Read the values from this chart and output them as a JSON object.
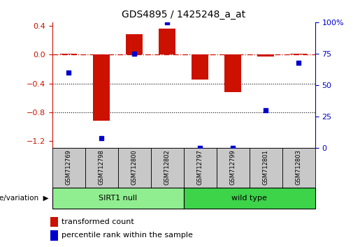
{
  "title": "GDS4895 / 1425248_a_at",
  "samples": [
    "GSM712769",
    "GSM712798",
    "GSM712800",
    "GSM712802",
    "GSM712797",
    "GSM712799",
    "GSM712801",
    "GSM712803"
  ],
  "transformed_count": [
    0.01,
    -0.92,
    0.28,
    0.36,
    -0.35,
    -0.52,
    -0.03,
    0.01
  ],
  "percentile_rank": [
    60,
    8,
    75,
    100,
    0,
    0,
    30,
    68
  ],
  "groups": [
    {
      "label": "SIRT1 null",
      "start": 0,
      "end": 4,
      "color": "#90EE90"
    },
    {
      "label": "wild type",
      "start": 4,
      "end": 8,
      "color": "#3DD44A"
    }
  ],
  "group_label": "genotype/variation",
  "bar_color": "#CC1100",
  "dot_color": "#0000CC",
  "ylim_left": [
    -1.3,
    0.45
  ],
  "ylim_right": [
    0,
    100
  ],
  "yticks_left": [
    -1.2,
    -0.8,
    -0.4,
    0.0,
    0.4
  ],
  "yticks_right": [
    0,
    25,
    50,
    75,
    100
  ],
  "hline_y": 0.0,
  "dotted_lines": [
    -0.4,
    -0.8
  ],
  "legend_items": [
    {
      "label": "transformed count",
      "color": "#CC1100"
    },
    {
      "label": "percentile rank within the sample",
      "color": "#0000CC"
    }
  ],
  "sample_box_color": "#C8C8C8",
  "background_color": "#ffffff"
}
